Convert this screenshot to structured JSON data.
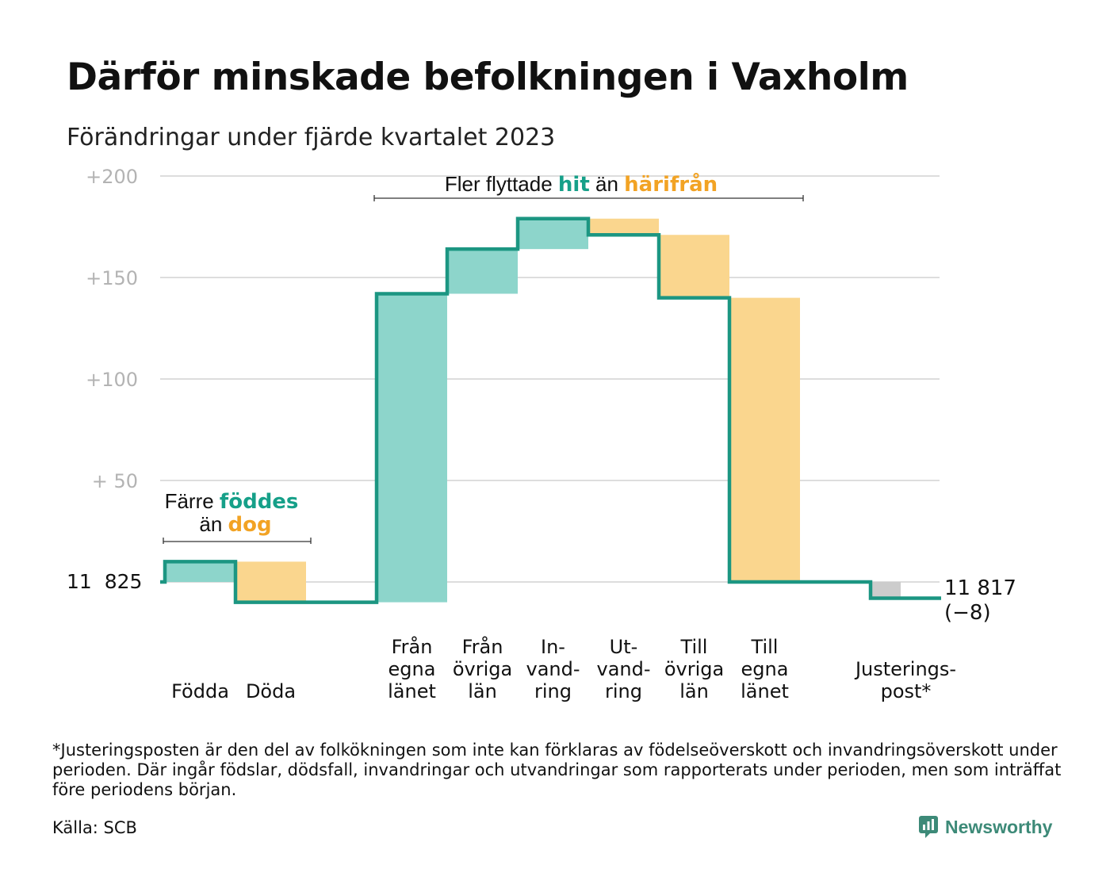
{
  "title": "Därför minskade befolkningen i Vaxholm",
  "subtitle": "Förändringar under fjärde kvartalet 2023",
  "colors": {
    "increase_fill": "#8dd5cb",
    "decrease_fill": "#fad68e",
    "adjustment_fill": "#cccccc",
    "step_line": "#1c9682",
    "accent_teal": "#16a089",
    "accent_orange": "#f2a324",
    "grid": "#dddddd",
    "tick_text": "#b3b3b3"
  },
  "chart_data": {
    "type": "waterfall",
    "base_population": 11825,
    "start_label": "11  825",
    "end_label_line1": "11 817",
    "end_label_line2": "(−8)",
    "y_ticks": [
      {
        "value": 50,
        "label": "+  50"
      },
      {
        "value": 100,
        "label": "+100"
      },
      {
        "value": 150,
        "label": "+150"
      },
      {
        "value": 200,
        "label": "+200"
      }
    ],
    "ylim": [
      -10,
      200
    ],
    "steps": [
      {
        "label": [
          "Födda"
        ],
        "change": 10,
        "kind": "increase"
      },
      {
        "label": [
          "Döda"
        ],
        "change": -20,
        "kind": "decrease"
      },
      {
        "label": [],
        "change": 0,
        "kind": "gap"
      },
      {
        "label": [
          "Från",
          "egna",
          "länet"
        ],
        "change": 152,
        "kind": "increase"
      },
      {
        "label": [
          "Från",
          "övriga",
          "län"
        ],
        "change": 22,
        "kind": "increase"
      },
      {
        "label": [
          "In-",
          "vand-",
          "ring"
        ],
        "change": 15,
        "kind": "increase"
      },
      {
        "label": [
          "Ut-",
          "vand-",
          "ring"
        ],
        "change": -8,
        "kind": "decrease"
      },
      {
        "label": [
          "Till",
          "övriga",
          "län"
        ],
        "change": -31,
        "kind": "decrease"
      },
      {
        "label": [
          "Till",
          "egna",
          "länet"
        ],
        "change": -140,
        "kind": "decrease"
      },
      {
        "label": [],
        "change": 0,
        "kind": "gap"
      },
      {
        "label": [
          "Justerings-",
          "post*"
        ],
        "change": -8,
        "kind": "adjustment"
      }
    ],
    "annotations": {
      "births_deaths": {
        "line1": "Färre ",
        "highlight1": "föddes",
        "line2": "än ",
        "highlight2": "dog"
      },
      "migration": {
        "text1": "Fler flyttade ",
        "highlight1": "hit",
        "text2": " än ",
        "highlight2": "härifrån"
      }
    }
  },
  "footnote": "*Justeringsposten är den del av folkökningen som inte kan förklaras av födelseöverskott och invandringsöverskott under perioden. Där ingår födslar, dödsfall, invandringar och utvandringar som rapporterats under perioden, men som inträffat före periodens början.",
  "source": "Källa: SCB",
  "brand": {
    "name": "Newsworthy",
    "logo_icon": "newsworthy-logo-icon"
  }
}
